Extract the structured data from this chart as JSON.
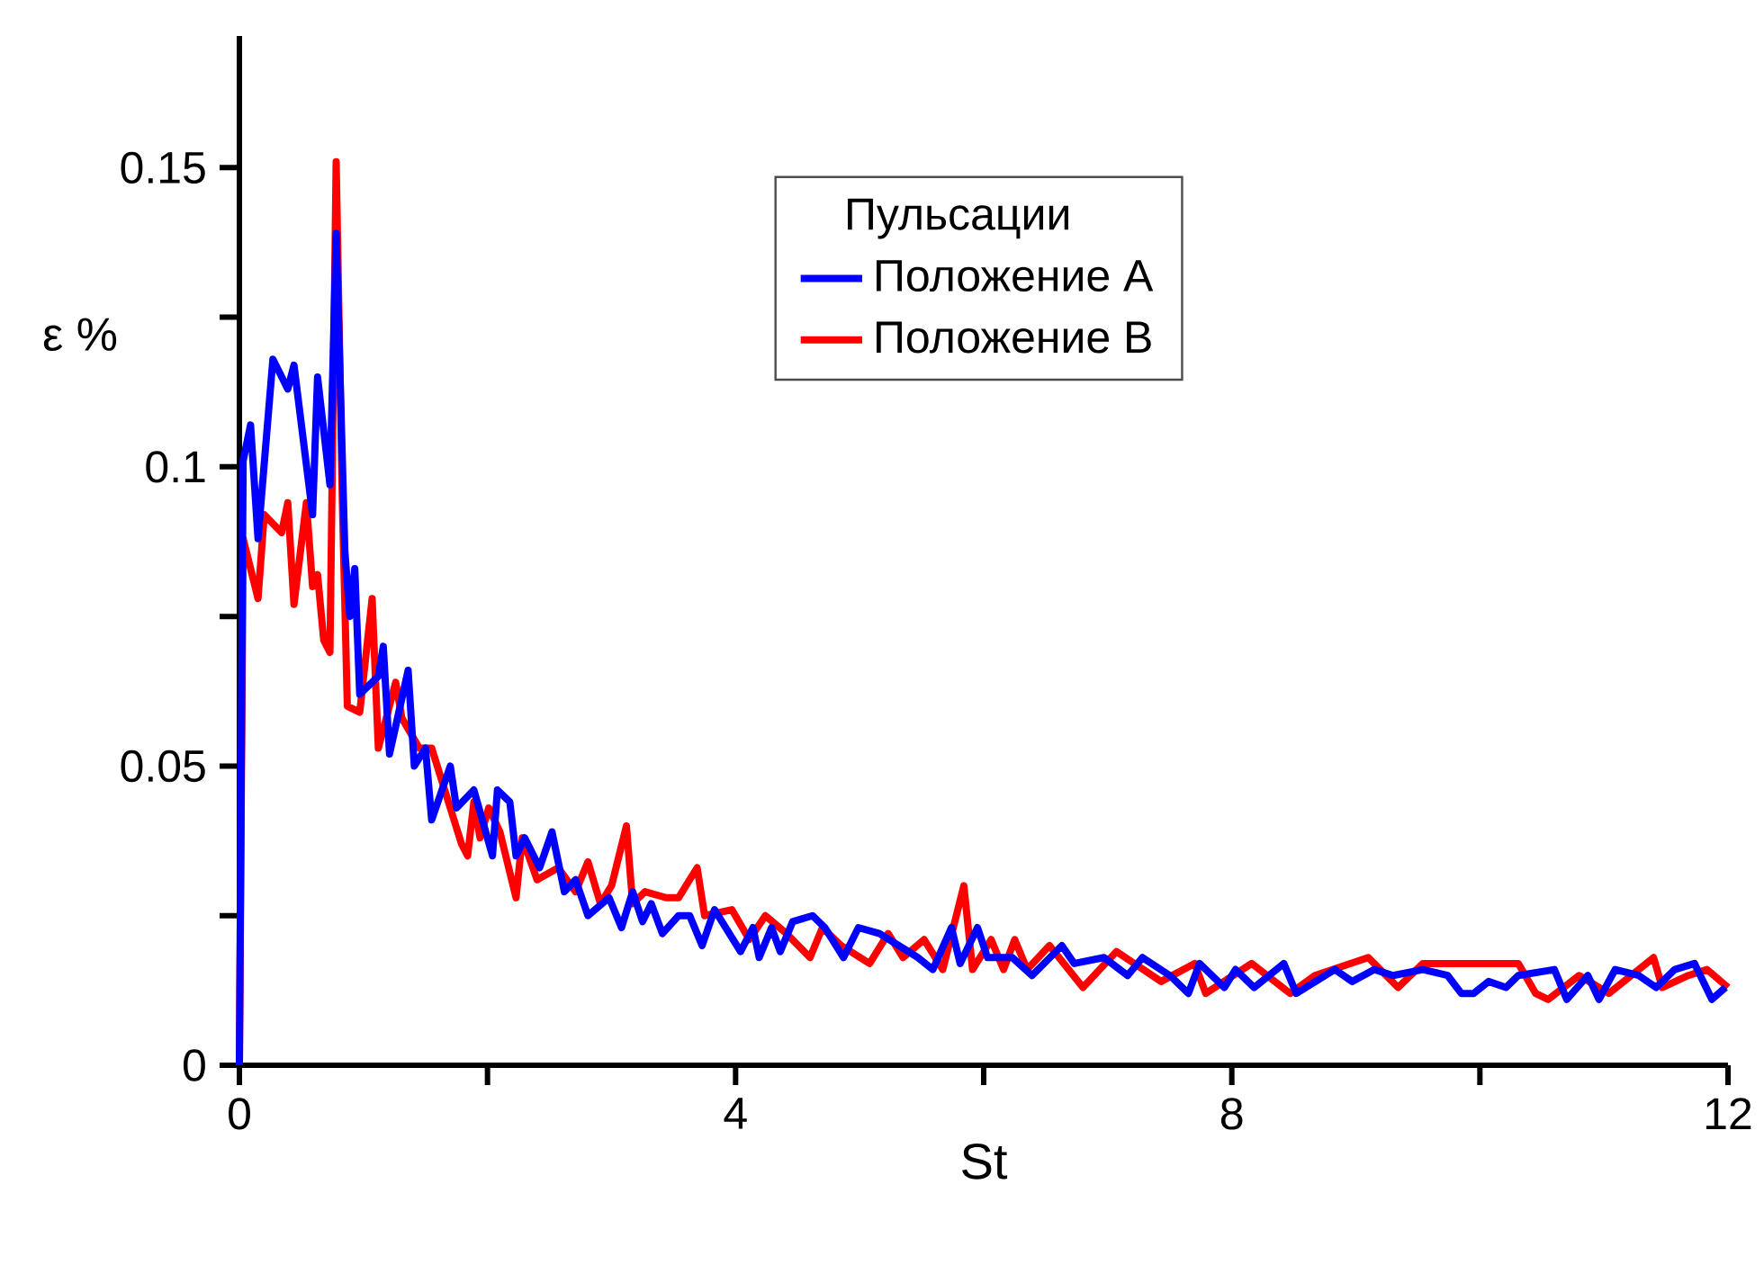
{
  "chart_data": {
    "type": "line",
    "xlabel": "St",
    "ylabel": "ε %",
    "legend_title": "Пульсации",
    "legend": "top right",
    "xlim": [
      0,
      12
    ],
    "ylim": [
      0,
      0.172
    ],
    "xticks": [
      0,
      {
        "value": 2,
        "label": null
      },
      4,
      {
        "value": 6,
        "label": null
      },
      8,
      {
        "value": 10,
        "label": null
      },
      12
    ],
    "yticks": [
      0,
      {
        "value": 0.025,
        "label": null
      },
      0.05,
      {
        "value": 0.075,
        "label": null
      },
      0.1,
      {
        "value": 0.125,
        "label": null
      },
      0.15
    ],
    "series": [
      {
        "name": "Положение A",
        "color": "#0000ff",
        "x": [
          0,
          0.03,
          0.09,
          0.15,
          0.27,
          0.39,
          0.44,
          0.59,
          0.63,
          0.73,
          0.78,
          0.85,
          0.89,
          0.93,
          0.97,
          1.12,
          1.16,
          1.21,
          1.36,
          1.41,
          1.5,
          1.55,
          1.7,
          1.75,
          1.89,
          2.04,
          2.08,
          2.18,
          2.23,
          2.3,
          2.42,
          2.52,
          2.62,
          2.71,
          2.81,
          2.98,
          3.08,
          3.17,
          3.25,
          3.32,
          3.41,
          3.54,
          3.63,
          3.73,
          3.83,
          4.04,
          4.14,
          4.19,
          4.29,
          4.36,
          4.46,
          4.62,
          4.72,
          4.87,
          4.99,
          5.16,
          5.47,
          5.59,
          5.74,
          5.81,
          5.95,
          6.03,
          6.23,
          6.39,
          6.63,
          6.73,
          6.97,
          7.16,
          7.28,
          7.5,
          7.65,
          7.74,
          7.94,
          8.03,
          8.18,
          8.42,
          8.52,
          8.83,
          8.97,
          9.15,
          9.3,
          9.54,
          9.74,
          9.85,
          9.95,
          10.07,
          10.21,
          10.31,
          10.6,
          10.7,
          10.87,
          10.96,
          11.09,
          11.28,
          11.42,
          11.57,
          11.73,
          11.87,
          11.98
        ],
        "values": [
          0,
          0.101,
          0.107,
          0.088,
          0.118,
          0.113,
          0.117,
          0.092,
          0.115,
          0.097,
          0.139,
          0.086,
          0.075,
          0.083,
          0.062,
          0.065,
          0.07,
          0.052,
          0.066,
          0.05,
          0.053,
          0.041,
          0.05,
          0.043,
          0.046,
          0.035,
          0.046,
          0.044,
          0.035,
          0.038,
          0.033,
          0.039,
          0.029,
          0.031,
          0.025,
          0.028,
          0.023,
          0.029,
          0.024,
          0.027,
          0.022,
          0.025,
          0.025,
          0.02,
          0.026,
          0.019,
          0.023,
          0.018,
          0.023,
          0.019,
          0.024,
          0.025,
          0.023,
          0.018,
          0.023,
          0.022,
          0.018,
          0.016,
          0.023,
          0.017,
          0.023,
          0.018,
          0.018,
          0.015,
          0.02,
          0.017,
          0.018,
          0.015,
          0.018,
          0.015,
          0.012,
          0.017,
          0.013,
          0.016,
          0.013,
          0.017,
          0.012,
          0.016,
          0.014,
          0.016,
          0.015,
          0.016,
          0.015,
          0.012,
          0.012,
          0.014,
          0.013,
          0.015,
          0.016,
          0.011,
          0.015,
          0.011,
          0.016,
          0.015,
          0.013,
          0.016,
          0.017,
          0.011,
          0.013
        ]
      },
      {
        "name": "Положение B",
        "color": "#ff0000",
        "x": [
          0,
          0.03,
          0.15,
          0.2,
          0.34,
          0.39,
          0.44,
          0.54,
          0.59,
          0.63,
          0.68,
          0.73,
          0.78,
          0.83,
          0.87,
          0.97,
          1.07,
          1.12,
          1.26,
          1.31,
          1.45,
          1.55,
          1.79,
          1.84,
          1.89,
          1.94,
          2.01,
          2.1,
          2.23,
          2.28,
          2.4,
          2.57,
          2.71,
          2.81,
          2.91,
          3.0,
          3.12,
          3.17,
          3.27,
          3.44,
          3.54,
          3.69,
          3.75,
          3.97,
          4.11,
          4.24,
          4.41,
          4.6,
          4.7,
          4.85,
          5.08,
          5.23,
          5.35,
          5.52,
          5.67,
          5.84,
          5.91,
          6.06,
          6.16,
          6.25,
          6.35,
          6.53,
          6.8,
          7.07,
          7.43,
          7.7,
          7.79,
          8.16,
          8.47,
          8.67,
          9.1,
          9.34,
          9.54,
          9.74,
          10.31,
          10.45,
          10.55,
          10.8,
          11.04,
          11.4,
          11.47,
          11.68,
          11.83,
          12.0
        ],
        "values": [
          0,
          0.088,
          0.078,
          0.092,
          0.089,
          0.094,
          0.077,
          0.094,
          0.08,
          0.082,
          0.071,
          0.069,
          0.151,
          0.094,
          0.06,
          0.059,
          0.078,
          0.053,
          0.064,
          0.058,
          0.053,
          0.053,
          0.037,
          0.035,
          0.044,
          0.038,
          0.043,
          0.039,
          0.028,
          0.038,
          0.031,
          0.033,
          0.029,
          0.034,
          0.027,
          0.03,
          0.04,
          0.027,
          0.029,
          0.028,
          0.028,
          0.033,
          0.025,
          0.026,
          0.021,
          0.025,
          0.022,
          0.018,
          0.023,
          0.02,
          0.017,
          0.022,
          0.018,
          0.021,
          0.016,
          0.03,
          0.016,
          0.021,
          0.016,
          0.021,
          0.016,
          0.02,
          0.013,
          0.019,
          0.014,
          0.017,
          0.012,
          0.017,
          0.012,
          0.015,
          0.018,
          0.013,
          0.017,
          0.017,
          0.017,
          0.012,
          0.011,
          0.015,
          0.012,
          0.018,
          0.013,
          0.015,
          0.016,
          0.013
        ]
      }
    ]
  }
}
